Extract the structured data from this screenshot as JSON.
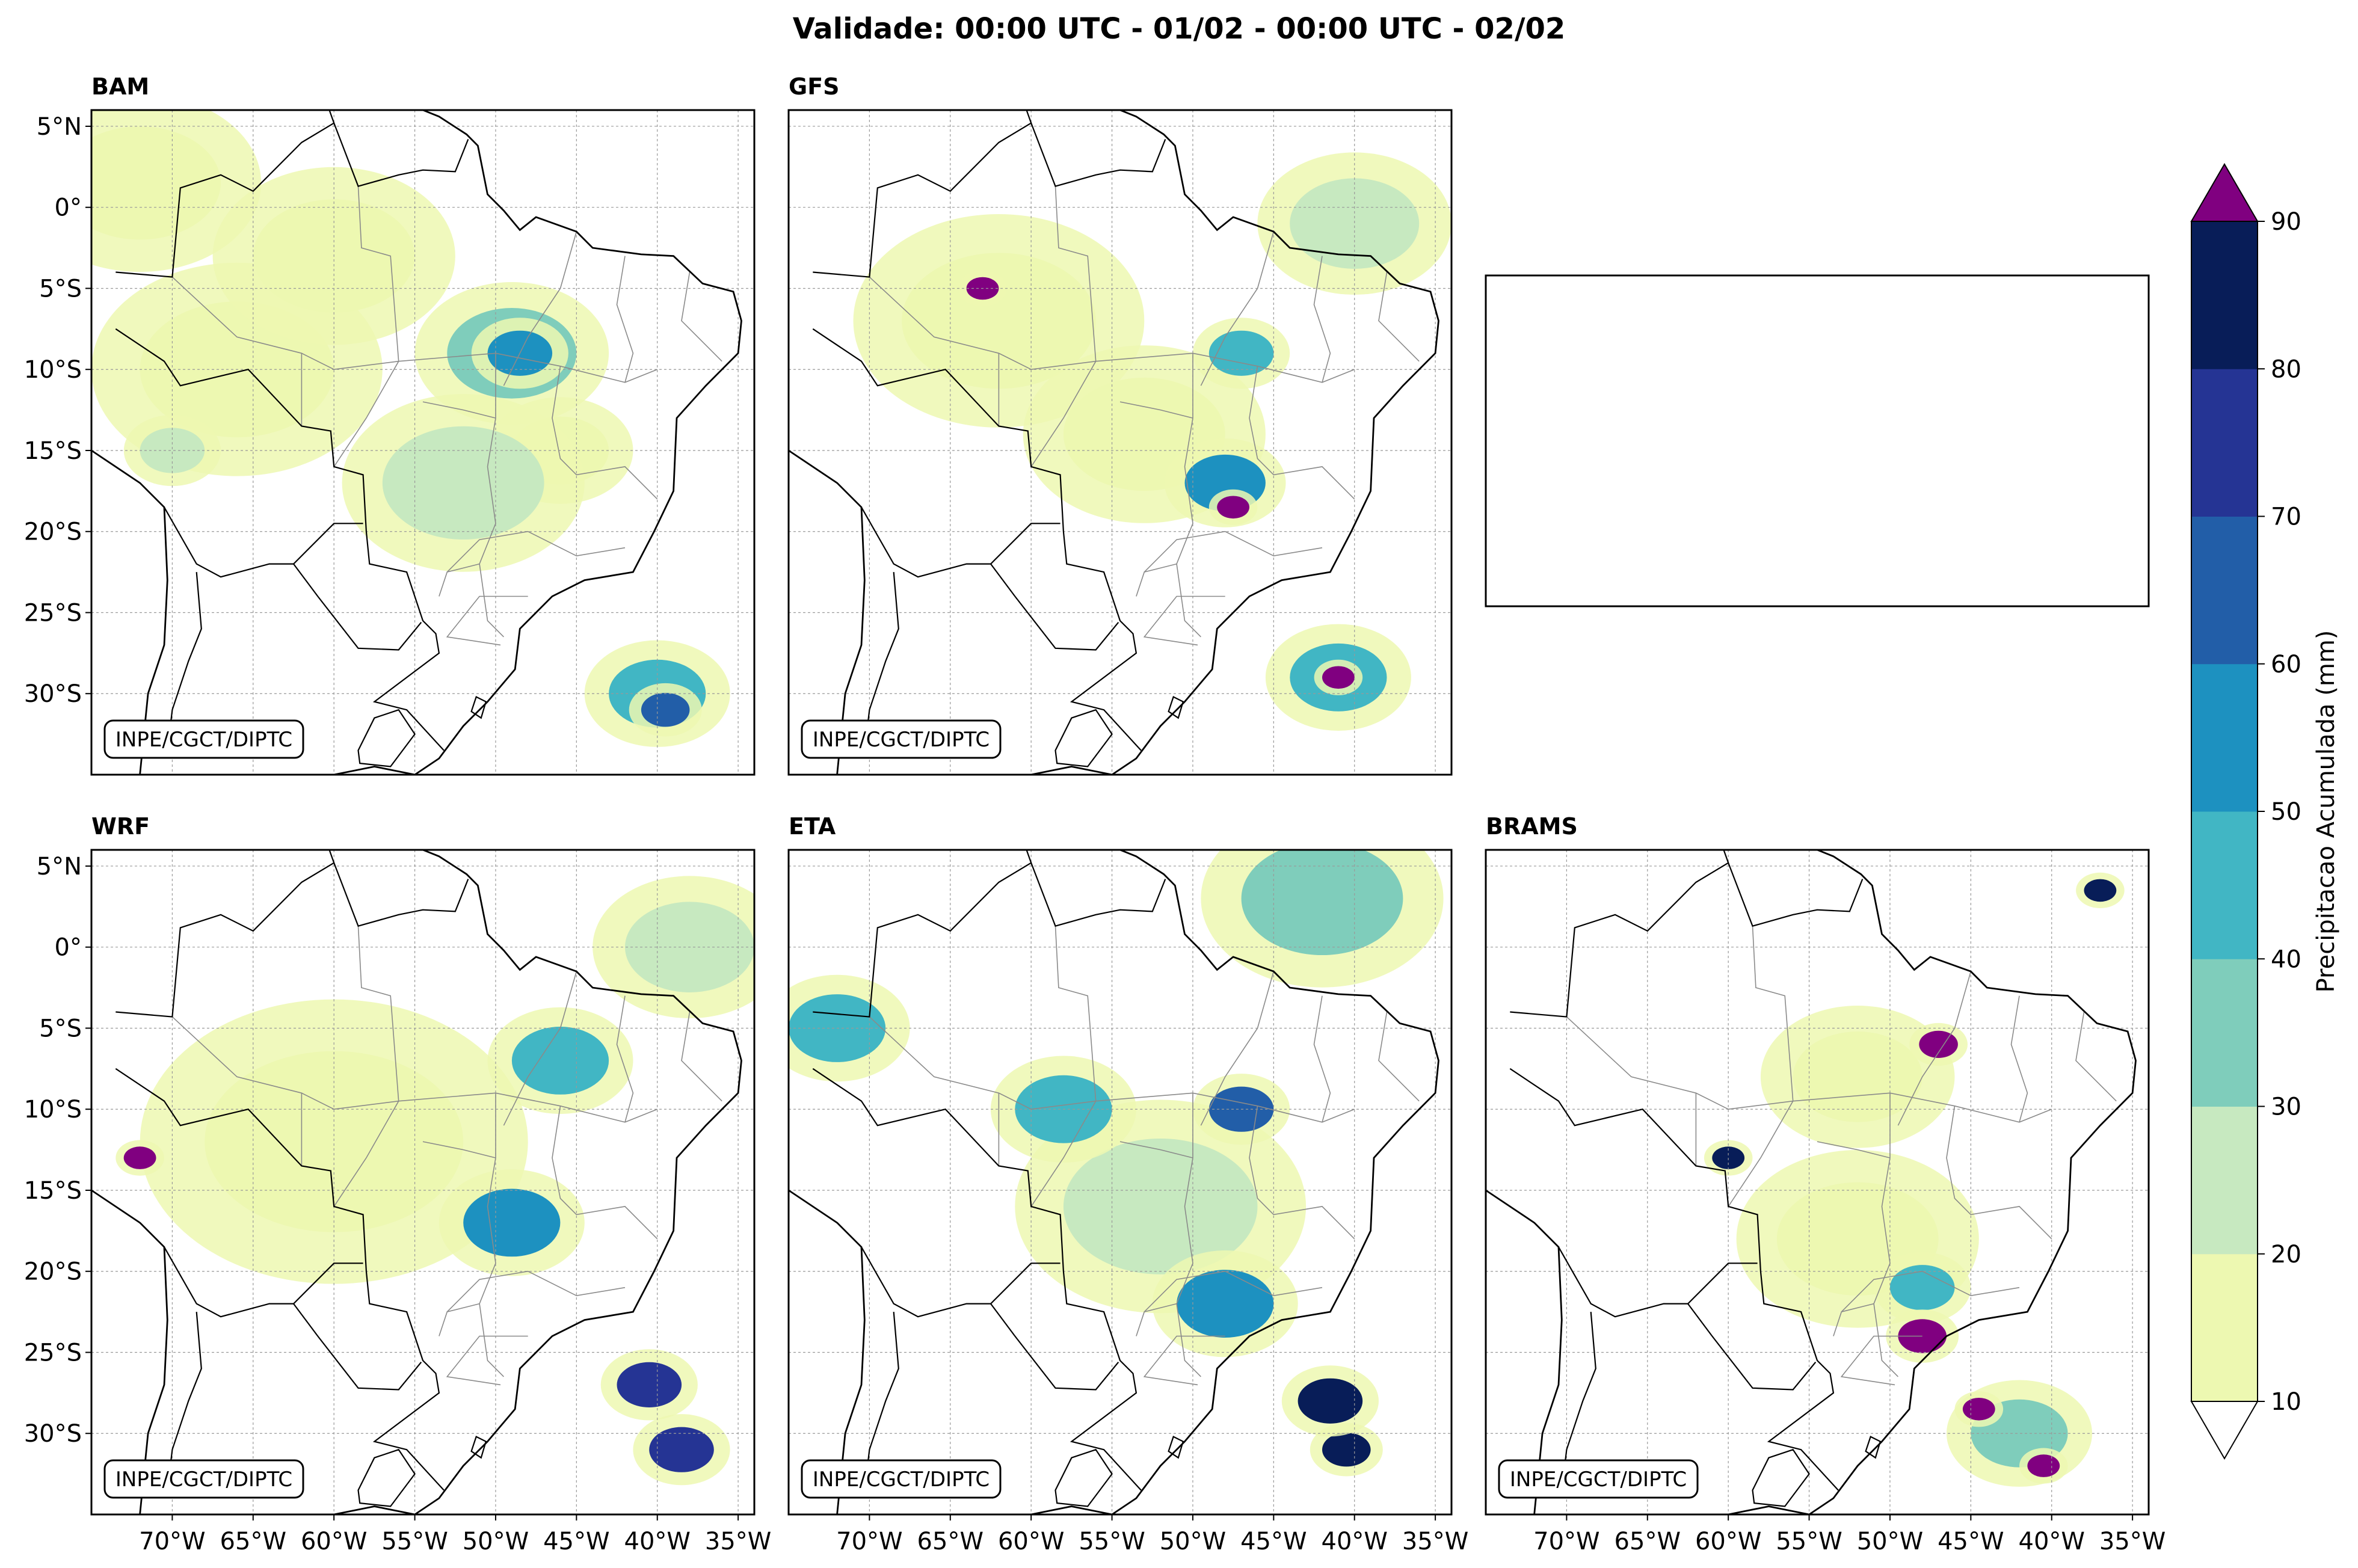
{
  "figure_title": "Validade: 00:00 UTC - 01/02 - 00:00 UTC - 02/02",
  "credit": "INPE/CGCT/DIPTC",
  "colors": {
    "levels": [
      "#edf8b1",
      "#c7e9c0",
      "#7fcdbb",
      "#41b6c4",
      "#1d91c0",
      "#225ea8",
      "#253494",
      "#081d58"
    ],
    "over": "#800080",
    "border": "#000000",
    "grid": "#999999"
  },
  "chart_data": {
    "type": "map-panels",
    "extent": {
      "lon": [
        -75,
        -34
      ],
      "lat": [
        -35,
        6
      ]
    },
    "lat_ticks": [
      5,
      0,
      -5,
      -10,
      -15,
      -20,
      -25,
      -30
    ],
    "lat_tick_labels": [
      "5°N",
      "0°",
      "5°S",
      "10°S",
      "15°S",
      "20°S",
      "25°S",
      "30°S"
    ],
    "lon_ticks": [
      -70,
      -65,
      -60,
      -55,
      -50,
      -45,
      -40,
      -35
    ],
    "lon_tick_labels": [
      "70°W",
      "65°W",
      "60°W",
      "55°W",
      "50°W",
      "45°W",
      "40°W",
      "35°W"
    ],
    "panels": [
      {
        "name": "BAM",
        "title": "BAM",
        "blank": false
      },
      {
        "name": "GFS",
        "title": "GFS",
        "blank": false
      },
      {
        "name": "empty",
        "title": "",
        "blank": true
      },
      {
        "name": "WRF",
        "title": "WRF",
        "blank": false
      },
      {
        "name": "ETA",
        "title": "ETA",
        "blank": false
      },
      {
        "name": "BRAMS",
        "title": "BRAMS",
        "blank": false
      }
    ],
    "colorbar": {
      "label": "Precipitacao Acumulada (mm)",
      "levels": [
        10,
        20,
        30,
        40,
        50,
        60,
        70,
        80,
        90
      ],
      "tick_labels": [
        "10",
        "20",
        "30",
        "40",
        "50",
        "60",
        "70",
        "80",
        "90"
      ],
      "extend": "both"
    },
    "precip_features": {
      "BAM": [
        {
          "lon": -72,
          "lat": 1.5,
          "r": 5,
          "mm": 12
        },
        {
          "lon": -49,
          "lat": -9,
          "r": 4,
          "mm": 30
        },
        {
          "lon": -48.5,
          "lat": -9,
          "r": 2,
          "mm": 55
        },
        {
          "lon": -52,
          "lat": -17,
          "r": 5,
          "mm": 25
        },
        {
          "lon": -46,
          "lat": -15,
          "r": 3,
          "mm": 18
        },
        {
          "lon": -40,
          "lat": -30,
          "r": 3,
          "mm": 40
        },
        {
          "lon": -39.5,
          "lat": -31,
          "r": 1.5,
          "mm": 60
        },
        {
          "lon": -66,
          "lat": -10,
          "r": 6,
          "mm": 12
        },
        {
          "lon": -70,
          "lat": -15,
          "r": 2,
          "mm": 25
        },
        {
          "lon": -60,
          "lat": -3,
          "r": 5,
          "mm": 12
        }
      ],
      "GFS": [
        {
          "lon": -63,
          "lat": -5,
          "r": 1,
          "mm": 95
        },
        {
          "lon": -47.5,
          "lat": -18.5,
          "r": 1,
          "mm": 92
        },
        {
          "lon": -48,
          "lat": -17,
          "r": 2.5,
          "mm": 50
        },
        {
          "lon": -47,
          "lat": -9,
          "r": 2,
          "mm": 45
        },
        {
          "lon": -41,
          "lat": -29,
          "r": 1,
          "mm": 95
        },
        {
          "lon": -41,
          "lat": -29,
          "r": 3,
          "mm": 45
        },
        {
          "lon": -53,
          "lat": -14,
          "r": 5,
          "mm": 15
        },
        {
          "lon": -40,
          "lat": -1,
          "r": 4,
          "mm": 22
        },
        {
          "lon": -62,
          "lat": -7,
          "r": 6,
          "mm": 12
        }
      ],
      "WRF": [
        {
          "lon": -72,
          "lat": -13,
          "r": 1,
          "mm": 92
        },
        {
          "lon": -60,
          "lat": -12,
          "r": 8,
          "mm": 18
        },
        {
          "lon": -49,
          "lat": -17,
          "r": 3,
          "mm": 50
        },
        {
          "lon": -40.5,
          "lat": -27,
          "r": 2,
          "mm": 75
        },
        {
          "lon": -38.5,
          "lat": -31,
          "r": 2,
          "mm": 70
        },
        {
          "lon": -38,
          "lat": 0,
          "r": 4,
          "mm": 22
        },
        {
          "lon": -46,
          "lat": -7,
          "r": 3,
          "mm": 40
        }
      ],
      "ETA": [
        {
          "lon": -42,
          "lat": 3,
          "r": 5,
          "mm": 35
        },
        {
          "lon": -47,
          "lat": -10,
          "r": 2,
          "mm": 65
        },
        {
          "lon": -41.5,
          "lat": -28,
          "r": 2,
          "mm": 85
        },
        {
          "lon": -40.5,
          "lat": -31,
          "r": 1.5,
          "mm": 80
        },
        {
          "lon": -72,
          "lat": -5,
          "r": 3,
          "mm": 45
        },
        {
          "lon": -58,
          "lat": -10,
          "r": 3,
          "mm": 40
        },
        {
          "lon": -52,
          "lat": -16,
          "r": 6,
          "mm": 20
        },
        {
          "lon": -48,
          "lat": -22,
          "r": 3,
          "mm": 55
        }
      ],
      "BRAMS": [
        {
          "lon": -48,
          "lat": -24,
          "r": 1.5,
          "mm": 95
        },
        {
          "lon": -47,
          "lat": -6,
          "r": 1.2,
          "mm": 95
        },
        {
          "lon": -44.5,
          "lat": -28.5,
          "r": 1,
          "mm": 95
        },
        {
          "lon": -40.5,
          "lat": -32,
          "r": 1,
          "mm": 95
        },
        {
          "lon": -37,
          "lat": 3.5,
          "r": 1,
          "mm": 85
        },
        {
          "lon": -52,
          "lat": -18,
          "r": 5,
          "mm": 15
        },
        {
          "lon": -48,
          "lat": -21,
          "r": 2,
          "mm": 45
        },
        {
          "lon": -60,
          "lat": -13,
          "r": 1,
          "mm": 80
        },
        {
          "lon": -52,
          "lat": -8,
          "r": 4,
          "mm": 12
        },
        {
          "lon": -42,
          "lat": -30,
          "r": 3,
          "mm": 30
        }
      ]
    }
  }
}
